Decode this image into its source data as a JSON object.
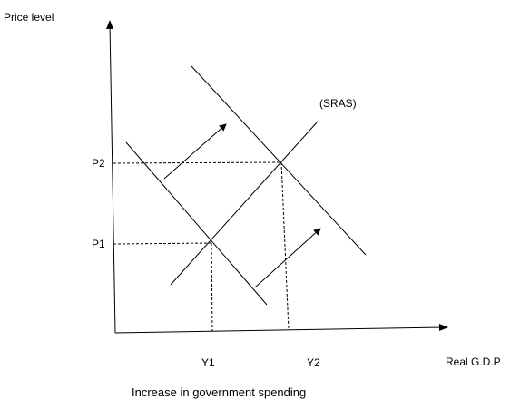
{
  "axes": {
    "y_label": "Price  level",
    "x_label": "Real G.D.P"
  },
  "curves": {
    "sras_label": "(SRAS)"
  },
  "price_levels": [
    "P2",
    "P1"
  ],
  "outputs": [
    "Y1",
    "Y2"
  ],
  "caption": "Increase in government spending"
}
